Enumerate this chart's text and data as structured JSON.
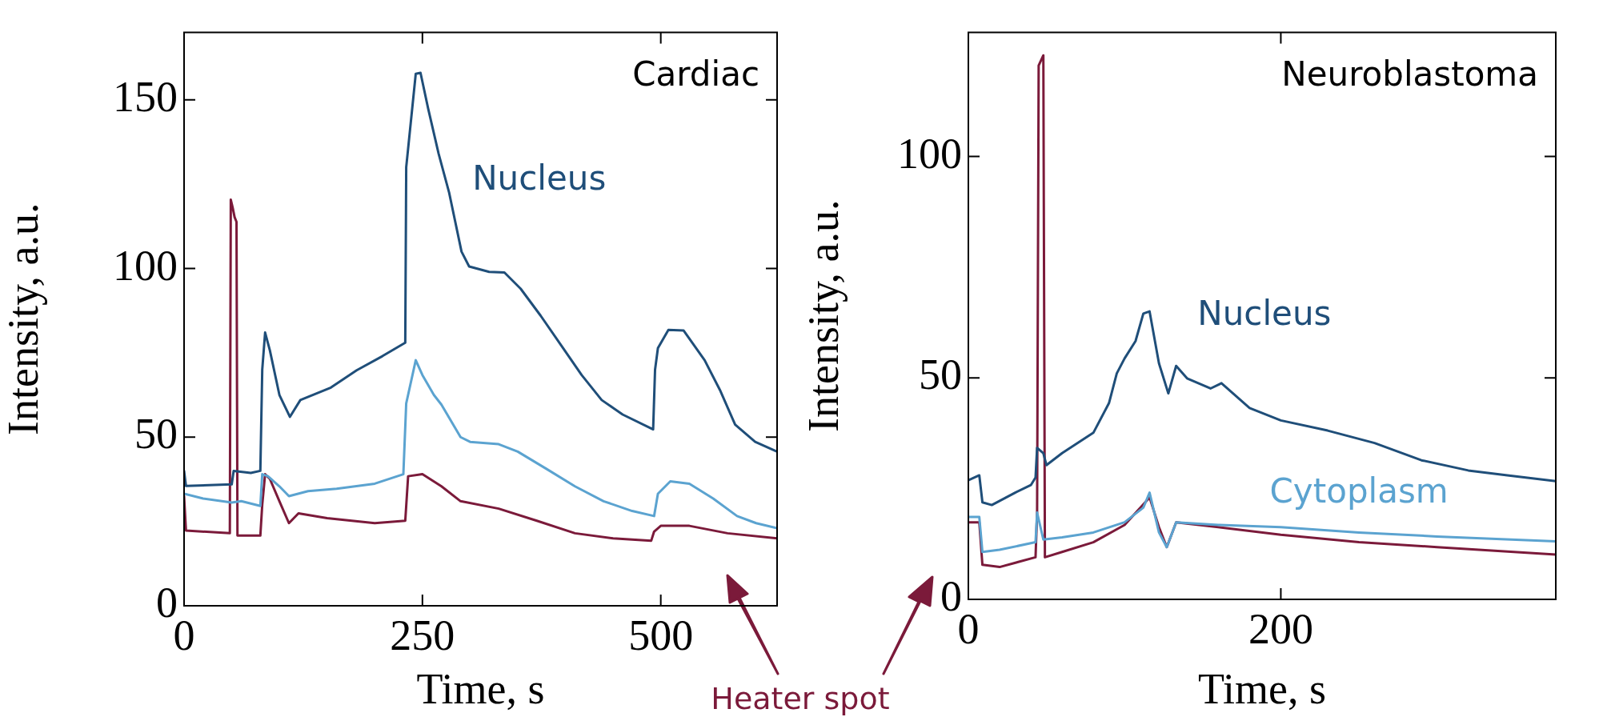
{
  "chart_data": [
    {
      "type": "line",
      "title": "Cardiac",
      "xlabel": "Time, s",
      "ylabel": "Intensity, a.u.",
      "xlim": [
        0,
        622
      ],
      "ylim": [
        0,
        170
      ],
      "xticks": [
        0,
        250,
        500
      ],
      "yticks": [
        0,
        50,
        100,
        150
      ],
      "grid": false,
      "legend": false,
      "marker": "none",
      "annotations": [
        "Heater spot"
      ],
      "series": [
        {
          "name": "Nucleus",
          "color": "#1f4e79",
          "x": [
            0,
            2,
            50,
            52,
            70,
            80,
            82,
            85,
            90,
            100,
            111,
            122,
            154,
            181,
            208,
            232,
            233,
            243,
            248,
            256,
            267,
            278,
            291,
            299,
            320,
            336,
            353,
            374,
            396,
            417,
            438,
            460,
            492,
            494,
            497,
            508,
            524,
            546,
            562,
            578,
            599,
            622
          ],
          "values": [
            40,
            35.5,
            36,
            40,
            39.4,
            40,
            70,
            81,
            75.7,
            62.5,
            56,
            61,
            64.7,
            69.8,
            74,
            78,
            130,
            157.7,
            158,
            147.4,
            134,
            122.5,
            105,
            100.6,
            99,
            98.8,
            94,
            86,
            77,
            68.4,
            61,
            56.7,
            52.3,
            70,
            76.4,
            81.8,
            81.6,
            72.8,
            64,
            53.7,
            48.6,
            45.7
          ]
        },
        {
          "color": "#5ba3d0",
          "x": [
            0,
            20,
            50,
            60,
            80,
            82,
            88,
            100,
            110,
            130,
            160,
            200,
            230,
            233,
            243,
            250,
            262,
            270,
            290,
            300,
            330,
            350,
            380,
            410,
            440,
            470,
            493,
            497,
            510,
            530,
            555,
            580,
            600,
            622
          ],
          "values": [
            33.2,
            31.8,
            30.6,
            31,
            29.6,
            39,
            38.4,
            35.4,
            32.5,
            34,
            34.7,
            36.2,
            39,
            60,
            72.8,
            68.4,
            62.5,
            59.6,
            50,
            48.6,
            47.9,
            45.7,
            40.6,
            35.4,
            31,
            28.1,
            26.6,
            33.2,
            36.9,
            36.2,
            31.8,
            26.6,
            24.5,
            23
          ]
        },
        {
          "color": "#7b1a3a",
          "x": [
            0,
            2,
            48,
            49,
            51,
            53,
            55,
            56,
            80,
            82,
            85,
            90,
            100,
            110,
            120,
            150,
            200,
            232,
            235,
            250,
            270,
            290,
            330,
            370,
            410,
            450,
            490,
            493,
            500,
            530,
            570,
            622
          ],
          "values": [
            32.5,
            22.3,
            21.5,
            120.4,
            118,
            115.2,
            113.8,
            20.8,
            20.8,
            30,
            39,
            37.6,
            31,
            24.5,
            27.4,
            26,
            24.5,
            25.2,
            38.4,
            39,
            35.4,
            31,
            28.8,
            25.2,
            21.5,
            20,
            19.3,
            22,
            23.7,
            23.7,
            21.5,
            20
          ]
        }
      ]
    },
    {
      "type": "line",
      "title": "Neuroblastoma",
      "xlabel": "Time, s",
      "ylabel": "Intensity, a.u.",
      "xlim": [
        0,
        376
      ],
      "ylim": [
        0,
        128
      ],
      "xticks": [
        0,
        200
      ],
      "yticks": [
        0,
        50,
        100
      ],
      "grid": false,
      "legend": false,
      "marker": "none",
      "series": [
        {
          "name": "Nucleus",
          "color": "#1f4e79",
          "x": [
            0,
            7,
            9,
            15,
            30,
            40,
            43,
            44,
            48,
            50,
            60,
            80,
            90,
            95,
            100,
            107,
            112,
            116,
            122,
            128,
            133,
            140,
            155,
            162,
            180,
            200,
            230,
            260,
            290,
            320,
            345,
            376
          ],
          "values": [
            26.9,
            28,
            21.9,
            21.3,
            24.1,
            25.8,
            27.5,
            34.2,
            33,
            30.3,
            33,
            37.6,
            44.3,
            51,
            54.4,
            58.3,
            64.5,
            65,
            53.3,
            46.5,
            52.7,
            49.9,
            47.6,
            48.8,
            43.2,
            40.4,
            38.1,
            35.3,
            31.4,
            29.1,
            28,
            26.7
          ]
        },
        {
          "name": "Cytoplasm",
          "color": "#5ba3d0",
          "x": [
            0,
            7,
            9,
            20,
            43,
            44,
            48,
            60,
            80,
            100,
            112,
            116,
            122,
            127,
            133,
            160,
            200,
            250,
            300,
            376
          ],
          "values": [
            18.6,
            18.6,
            10.7,
            11.2,
            12.9,
            19.6,
            13.5,
            14,
            15.1,
            17.4,
            20.7,
            24.1,
            15.1,
            11.8,
            17.4,
            16.8,
            16.3,
            15.1,
            14.2,
            13.1
          ]
        },
        {
          "color": "#7b1a3a",
          "x": [
            0,
            7,
            9,
            20,
            43,
            44,
            45,
            48,
            49,
            60,
            80,
            100,
            116,
            122,
            127,
            133,
            160,
            200,
            250,
            300,
            376
          ],
          "values": [
            17.4,
            17.4,
            7.8,
            7.3,
            9.5,
            19.6,
            120.5,
            122.8,
            9.5,
            10.7,
            12.9,
            16.8,
            23,
            16.3,
            11.8,
            17.4,
            16.3,
            14.6,
            12.9,
            11.8,
            10.1
          ]
        }
      ]
    }
  ]
}
